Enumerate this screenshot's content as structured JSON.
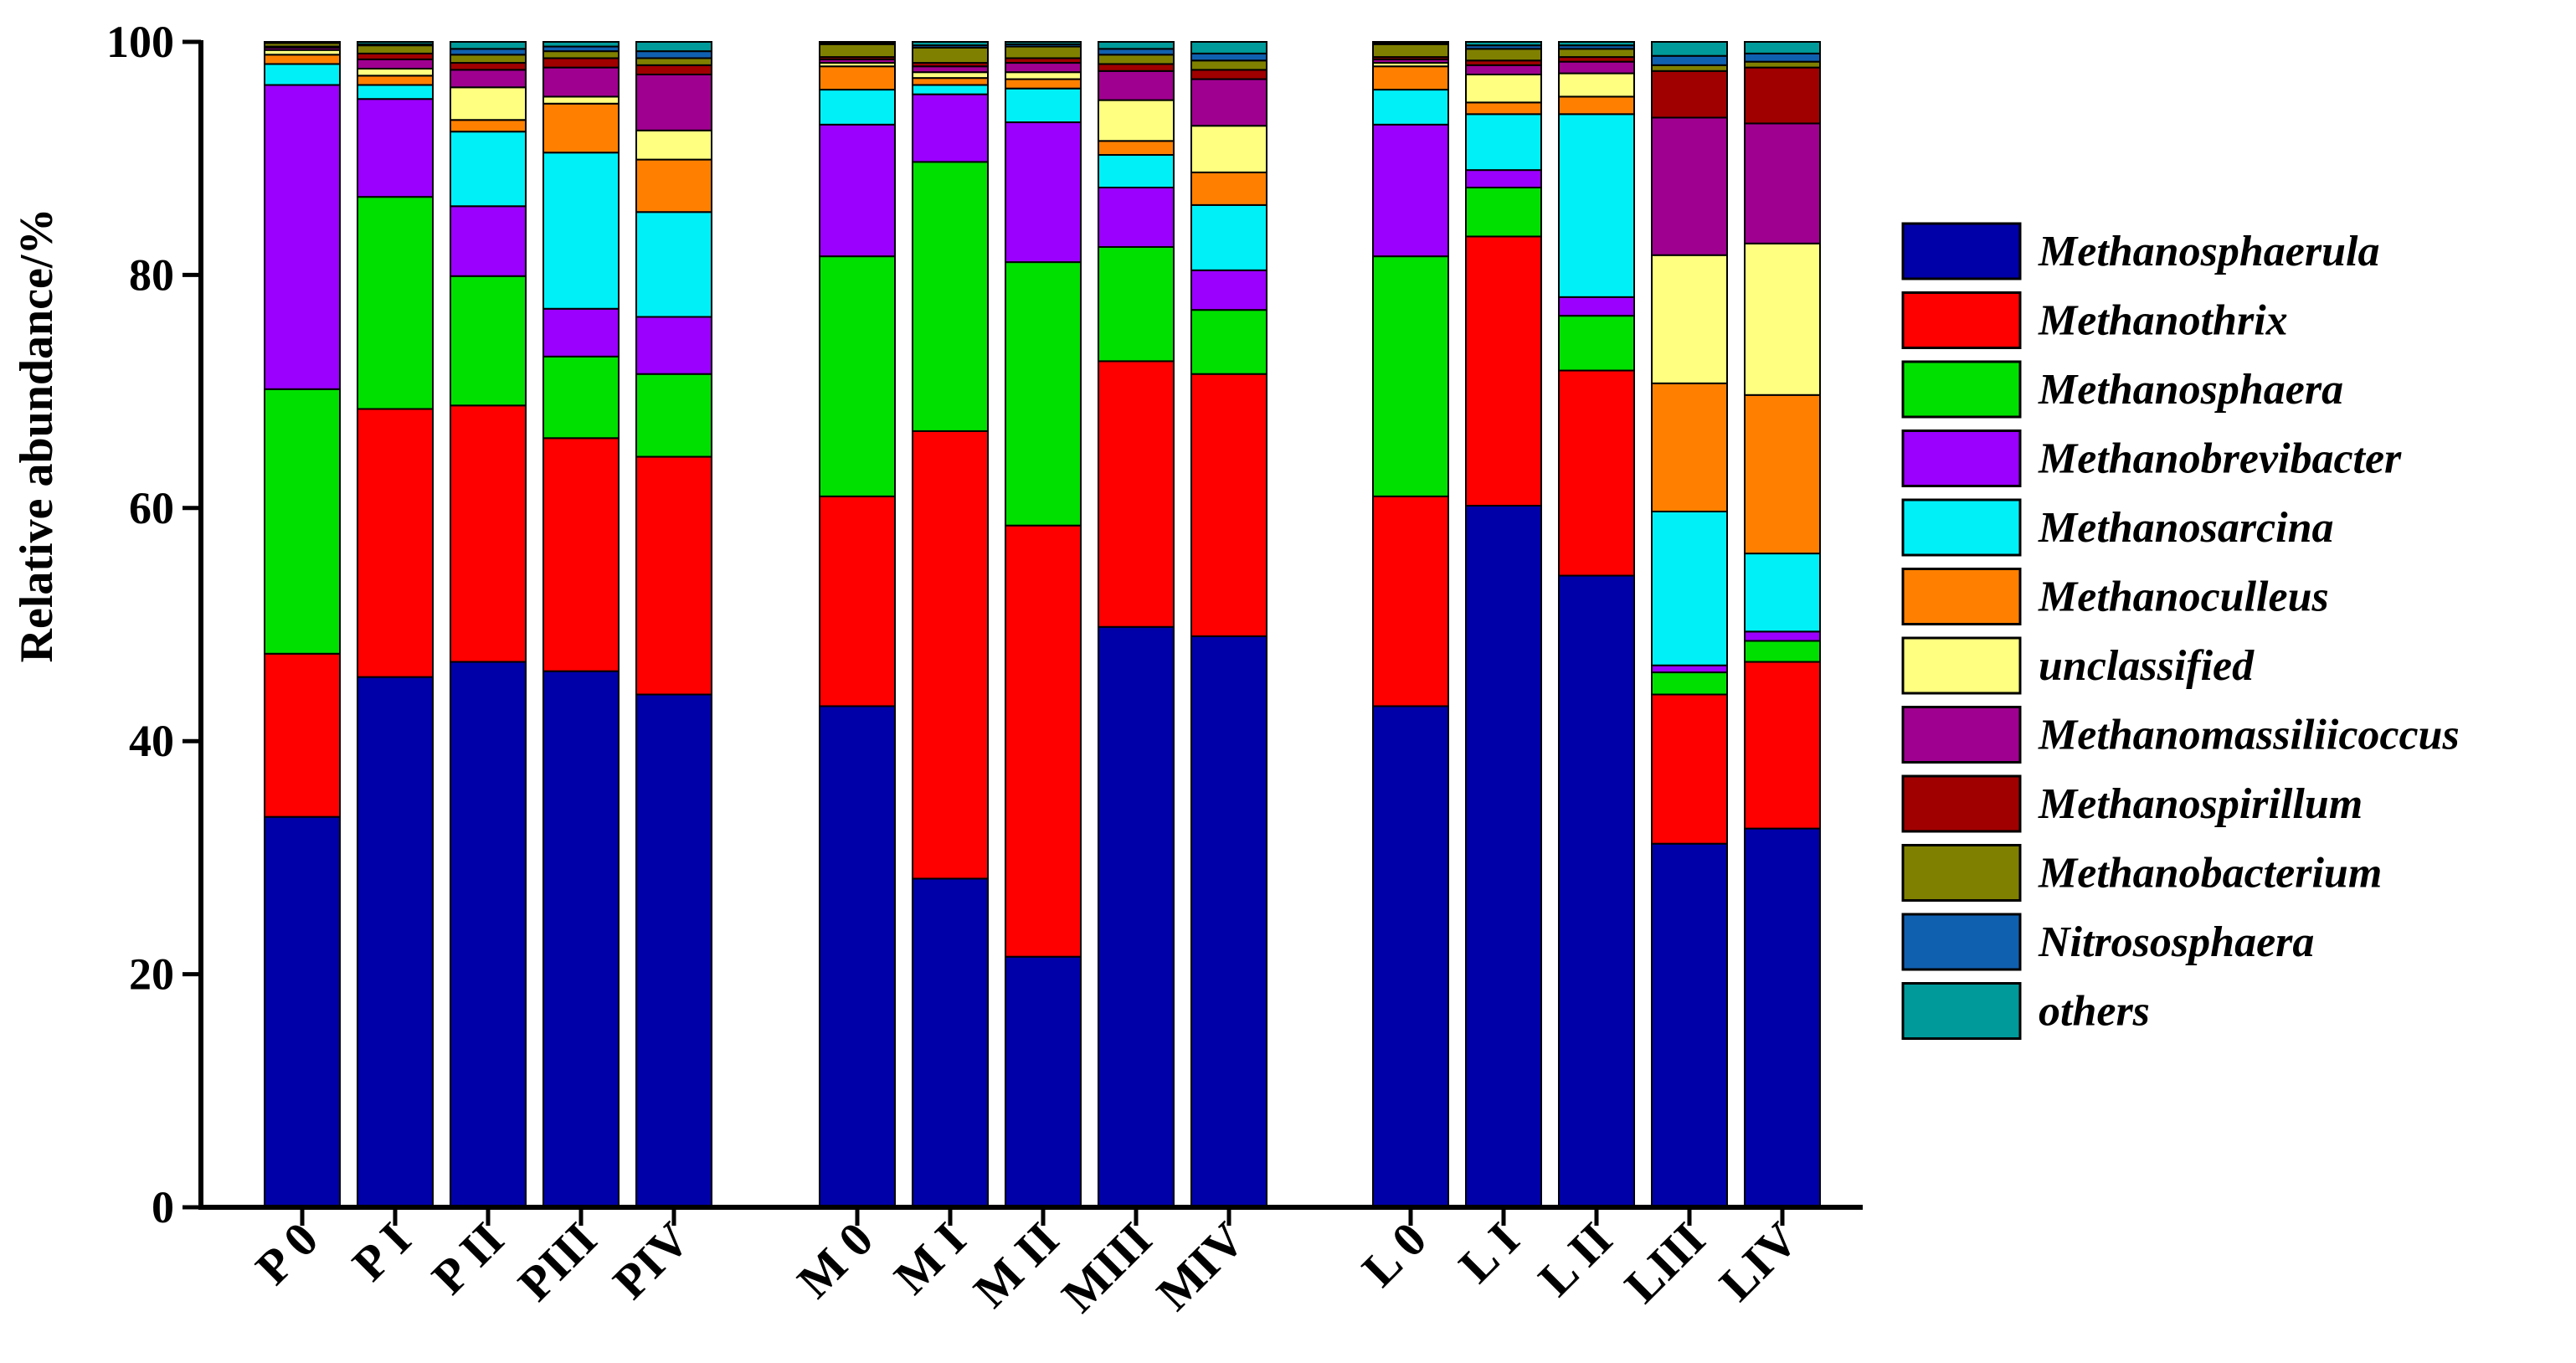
{
  "chart_data": {
    "type": "bar",
    "stacked": true,
    "title": "",
    "xlabel": "",
    "ylabel": "Relative abundance/%",
    "ylim": [
      0,
      100
    ],
    "yticks": [
      0,
      20,
      40,
      60,
      80,
      100
    ],
    "legend_position": "right",
    "categories": [
      "P 0",
      "P I",
      "P II",
      "PIII",
      "PIV",
      "M 0",
      "M I",
      "M II",
      "MIII",
      "MIV",
      "L 0",
      "L I",
      "L II",
      "LIII",
      "LIV"
    ],
    "groups": [
      {
        "name": "P",
        "categories": [
          "P 0",
          "P I",
          "P II",
          "PIII",
          "PIV"
        ]
      },
      {
        "name": "M",
        "categories": [
          "M 0",
          "M I",
          "M II",
          "MIII",
          "MIV"
        ]
      },
      {
        "name": "L",
        "categories": [
          "L 0",
          "L I",
          "L II",
          "LIII",
          "LIV"
        ]
      }
    ],
    "series": [
      {
        "name": "Methanosphaerula",
        "color": "#0000A8",
        "values": [
          33.5,
          45.5,
          46.8,
          46.0,
          44.0,
          43.0,
          28.2,
          21.5,
          49.8,
          49.0,
          43.0,
          60.2,
          54.2,
          31.2,
          32.5
        ]
      },
      {
        "name": "Methanothrix",
        "color": "#FF0000",
        "values": [
          14.0,
          23.0,
          22.0,
          20.0,
          20.4,
          18.0,
          38.4,
          37.0,
          22.8,
          22.5,
          18.0,
          23.1,
          17.6,
          12.8,
          14.3
        ]
      },
      {
        "name": "Methanosphaera",
        "color": "#00E000",
        "values": [
          22.7,
          18.2,
          11.1,
          7.0,
          7.1,
          20.6,
          23.1,
          22.6,
          9.8,
          5.5,
          20.6,
          4.2,
          4.7,
          1.9,
          1.8
        ]
      },
      {
        "name": "Methanobrevibacter",
        "color": "#9B00FF",
        "values": [
          26.1,
          8.4,
          6.0,
          4.1,
          4.9,
          11.3,
          5.8,
          12.0,
          5.1,
          3.4,
          11.3,
          1.5,
          1.6,
          0.6,
          0.8
        ]
      },
      {
        "name": "Methanosarcina",
        "color": "#00F0F8",
        "values": [
          1.8,
          1.2,
          6.4,
          13.4,
          9.0,
          3.0,
          0.8,
          2.9,
          2.8,
          5.6,
          3.0,
          4.8,
          15.7,
          13.2,
          6.7
        ]
      },
      {
        "name": "Methanoculleus",
        "color": "#FF8000",
        "values": [
          0.8,
          0.8,
          1.0,
          4.2,
          4.5,
          2.0,
          0.6,
          0.8,
          1.2,
          2.8,
          2.0,
          1.0,
          1.5,
          11.0,
          13.6
        ]
      },
      {
        "name": "unclassified",
        "color": "#FFFF80",
        "values": [
          0.4,
          0.6,
          2.8,
          0.6,
          2.5,
          0.3,
          0.5,
          0.6,
          3.5,
          4.0,
          0.3,
          2.4,
          2.0,
          11.0,
          13.0
        ]
      },
      {
        "name": "Methanomassiliicoccus",
        "color": "#A00090",
        "values": [
          0.2,
          0.8,
          1.5,
          2.5,
          4.8,
          0.3,
          0.5,
          0.8,
          2.5,
          4.0,
          0.3,
          0.8,
          1.0,
          11.8,
          10.3
        ]
      },
      {
        "name": "Methanospirillum",
        "color": "#A00000",
        "values": [
          0.1,
          0.5,
          0.6,
          0.8,
          0.8,
          0.2,
          0.3,
          0.4,
          0.6,
          0.8,
          0.2,
          0.4,
          0.4,
          4.0,
          4.8
        ]
      },
      {
        "name": "Methanobacterium",
        "color": "#808000",
        "values": [
          0.3,
          0.7,
          0.7,
          0.6,
          0.6,
          1.1,
          1.3,
          1.0,
          0.8,
          0.8,
          1.1,
          1.0,
          0.7,
          0.5,
          0.5
        ]
      },
      {
        "name": "Nitrososphaera",
        "color": "#1060B0",
        "values": [
          0.05,
          0.1,
          0.5,
          0.4,
          0.6,
          0.1,
          0.2,
          0.2,
          0.5,
          0.6,
          0.1,
          0.3,
          0.3,
          0.8,
          0.7
        ]
      },
      {
        "name": "others",
        "color": "#009A9A",
        "values": [
          0.05,
          0.2,
          0.6,
          0.4,
          0.8,
          0.1,
          0.3,
          0.2,
          0.6,
          1.0,
          0.1,
          0.3,
          0.3,
          1.2,
          1.0
        ]
      }
    ]
  }
}
